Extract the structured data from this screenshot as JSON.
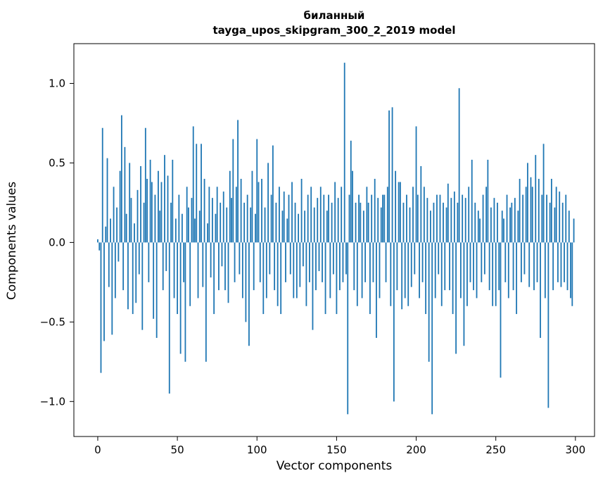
{
  "chart_data": {
    "type": "bar",
    "title": "биланный",
    "subtitle": "tayga_upos_skipgram_300_2_2019 model",
    "xlabel": "Vector components",
    "ylabel": "Components values",
    "x_ticks": [
      0,
      50,
      100,
      150,
      200,
      250,
      300
    ],
    "y_ticks": [
      1.0,
      0.5,
      0.0,
      -0.5,
      -1.0
    ],
    "y_tick_labels": [
      "1.0",
      "0.5",
      "0.0",
      "−0.5",
      "−1.0"
    ],
    "xlim": [
      -15,
      312
    ],
    "ylim": [
      -1.22,
      1.25
    ],
    "bar_color": "#1f77b4",
    "background": "#ffffff",
    "bar_width_units": 0.8,
    "values": [
      0.02,
      -0.05,
      -0.82,
      0.72,
      -0.62,
      0.1,
      0.53,
      -0.28,
      0.15,
      -0.58,
      0.35,
      -0.35,
      0.22,
      -0.12,
      0.45,
      0.8,
      -0.3,
      0.6,
      0.18,
      -0.42,
      0.5,
      0.28,
      -0.45,
      0.12,
      -0.38,
      0.33,
      -0.2,
      0.48,
      -0.55,
      0.25,
      0.72,
      0.4,
      -0.25,
      0.52,
      0.38,
      -0.48,
      0.3,
      -0.6,
      0.45,
      0.2,
      0.38,
      -0.3,
      0.55,
      -0.18,
      0.42,
      -0.95,
      0.25,
      0.52,
      -0.35,
      0.15,
      -0.45,
      0.3,
      -0.7,
      0.18,
      -0.25,
      -0.75,
      0.35,
      0.22,
      -0.4,
      0.28,
      0.73,
      0.15,
      0.62,
      -0.35,
      0.2,
      0.62,
      -0.28,
      0.4,
      -0.75,
      0.12,
      0.35,
      -0.22,
      0.28,
      -0.45,
      0.18,
      0.35,
      -0.3,
      0.25,
      -0.15,
      0.32,
      -0.3,
      0.22,
      -0.38,
      0.45,
      0.28,
      0.65,
      -0.25,
      0.35,
      0.77,
      -0.2,
      0.4,
      -0.35,
      0.25,
      -0.5,
      0.3,
      -0.65,
      0.22,
      0.45,
      -0.3,
      0.18,
      0.65,
      0.38,
      -0.25,
      0.4,
      -0.45,
      0.22,
      -0.35,
      0.5,
      -0.2,
      0.3,
      0.61,
      -0.3,
      0.25,
      -0.4,
      0.35,
      -0.45,
      0.2,
      0.32,
      -0.25,
      0.15,
      0.3,
      -0.2,
      0.38,
      -0.35,
      0.25,
      -0.35,
      0.18,
      -0.28,
      0.4,
      -0.15,
      0.2,
      -0.4,
      0.3,
      -0.25,
      0.35,
      -0.55,
      0.22,
      -0.3,
      0.28,
      -0.18,
      0.35,
      -0.25,
      0.3,
      -0.45,
      0.2,
      0.3,
      -0.35,
      0.25,
      -0.2,
      0.38,
      -0.45,
      0.28,
      -0.3,
      0.35,
      -0.25,
      1.13,
      -0.2,
      -1.08,
      0.3,
      0.64,
      0.45,
      -0.3,
      0.25,
      -0.4,
      0.3,
      0.25,
      -0.35,
      0.2,
      -0.25,
      0.35,
      0.25,
      -0.45,
      0.3,
      -0.25,
      0.4,
      -0.6,
      0.28,
      -0.35,
      0.22,
      0.3,
      0.3,
      -0.25,
      0.35,
      0.83,
      -0.4,
      0.85,
      -1.0,
      0.45,
      -0.3,
      0.38,
      0.38,
      -0.42,
      0.25,
      -0.35,
      0.3,
      -0.4,
      0.22,
      -0.28,
      0.35,
      -0.2,
      0.73,
      0.3,
      -0.35,
      0.48,
      -0.25,
      0.35,
      -0.45,
      0.28,
      -0.75,
      0.2,
      -1.08,
      0.25,
      -0.35,
      0.3,
      -0.2,
      0.3,
      -0.4,
      0.25,
      -0.3,
      0.22,
      0.37,
      -0.3,
      0.28,
      -0.45,
      0.32,
      -0.7,
      0.25,
      0.97,
      -0.35,
      0.3,
      -0.65,
      0.28,
      -0.4,
      0.35,
      -0.25,
      0.52,
      -0.3,
      0.25,
      -0.35,
      0.2,
      0.15,
      -0.25,
      0.3,
      -0.2,
      0.35,
      0.52,
      -0.3,
      0.22,
      -0.4,
      0.28,
      -0.4,
      0.25,
      -0.3,
      -0.85,
      0.2,
      0.15,
      -0.25,
      0.3,
      -0.35,
      0.22,
      0.25,
      -0.3,
      0.28,
      -0.45,
      0.2,
      0.4,
      -0.25,
      0.3,
      -0.2,
      0.35,
      0.5,
      -0.28,
      0.41,
      0.35,
      -0.3,
      0.55,
      -0.25,
      0.4,
      -0.6,
      0.3,
      0.62,
      -0.35,
      0.3,
      -1.04,
      0.25,
      0.4,
      -0.3,
      0.22,
      0.35,
      -0.25,
      0.32,
      -0.28,
      0.25,
      -0.25,
      0.3,
      -0.3,
      0.2,
      -0.35,
      -0.4,
      0.15
    ]
  }
}
